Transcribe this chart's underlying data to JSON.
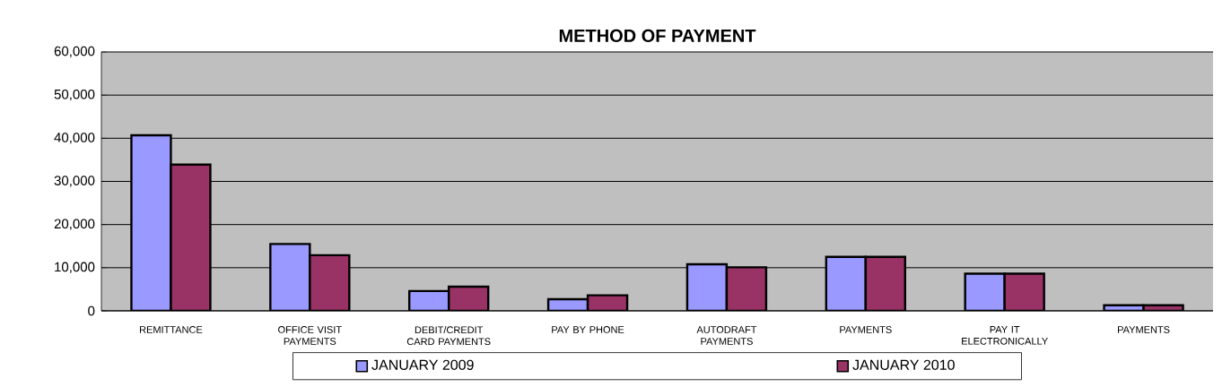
{
  "chart_data": {
    "type": "bar",
    "title": "METHOD OF PAYMENT",
    "categories": [
      "REMITTANCE",
      "OFFICE VISIT PAYMENTS",
      "DEBIT/CREDIT CARD PAYMENTS",
      "PAY BY PHONE",
      "AUTODRAFT PAYMENTS",
      "PAYMENTS",
      "PAY IT ELECTRONICALLY",
      "PAYMENTS"
    ],
    "series": [
      {
        "name": "JANUARY 2009",
        "color": "#9999ff",
        "values": [
          40700,
          15500,
          4600,
          2700,
          10800,
          12500,
          8600,
          1300
        ]
      },
      {
        "name": "JANUARY 2010",
        "color": "#993366",
        "values": [
          33900,
          12900,
          5600,
          3600,
          10100,
          12500,
          8600,
          1300
        ]
      }
    ],
    "ylim": [
      0,
      60000
    ],
    "yticks": [
      {
        "value": 0,
        "label": "0"
      },
      {
        "value": 10000,
        "label": "10,000"
      },
      {
        "value": 20000,
        "label": "20,000"
      },
      {
        "value": 30000,
        "label": "30,000"
      },
      {
        "value": 40000,
        "label": "40,000"
      },
      {
        "value": 50000,
        "label": "50,000"
      },
      {
        "value": 60000,
        "label": "60,000"
      }
    ],
    "grid": "y",
    "legend": "bottom"
  }
}
